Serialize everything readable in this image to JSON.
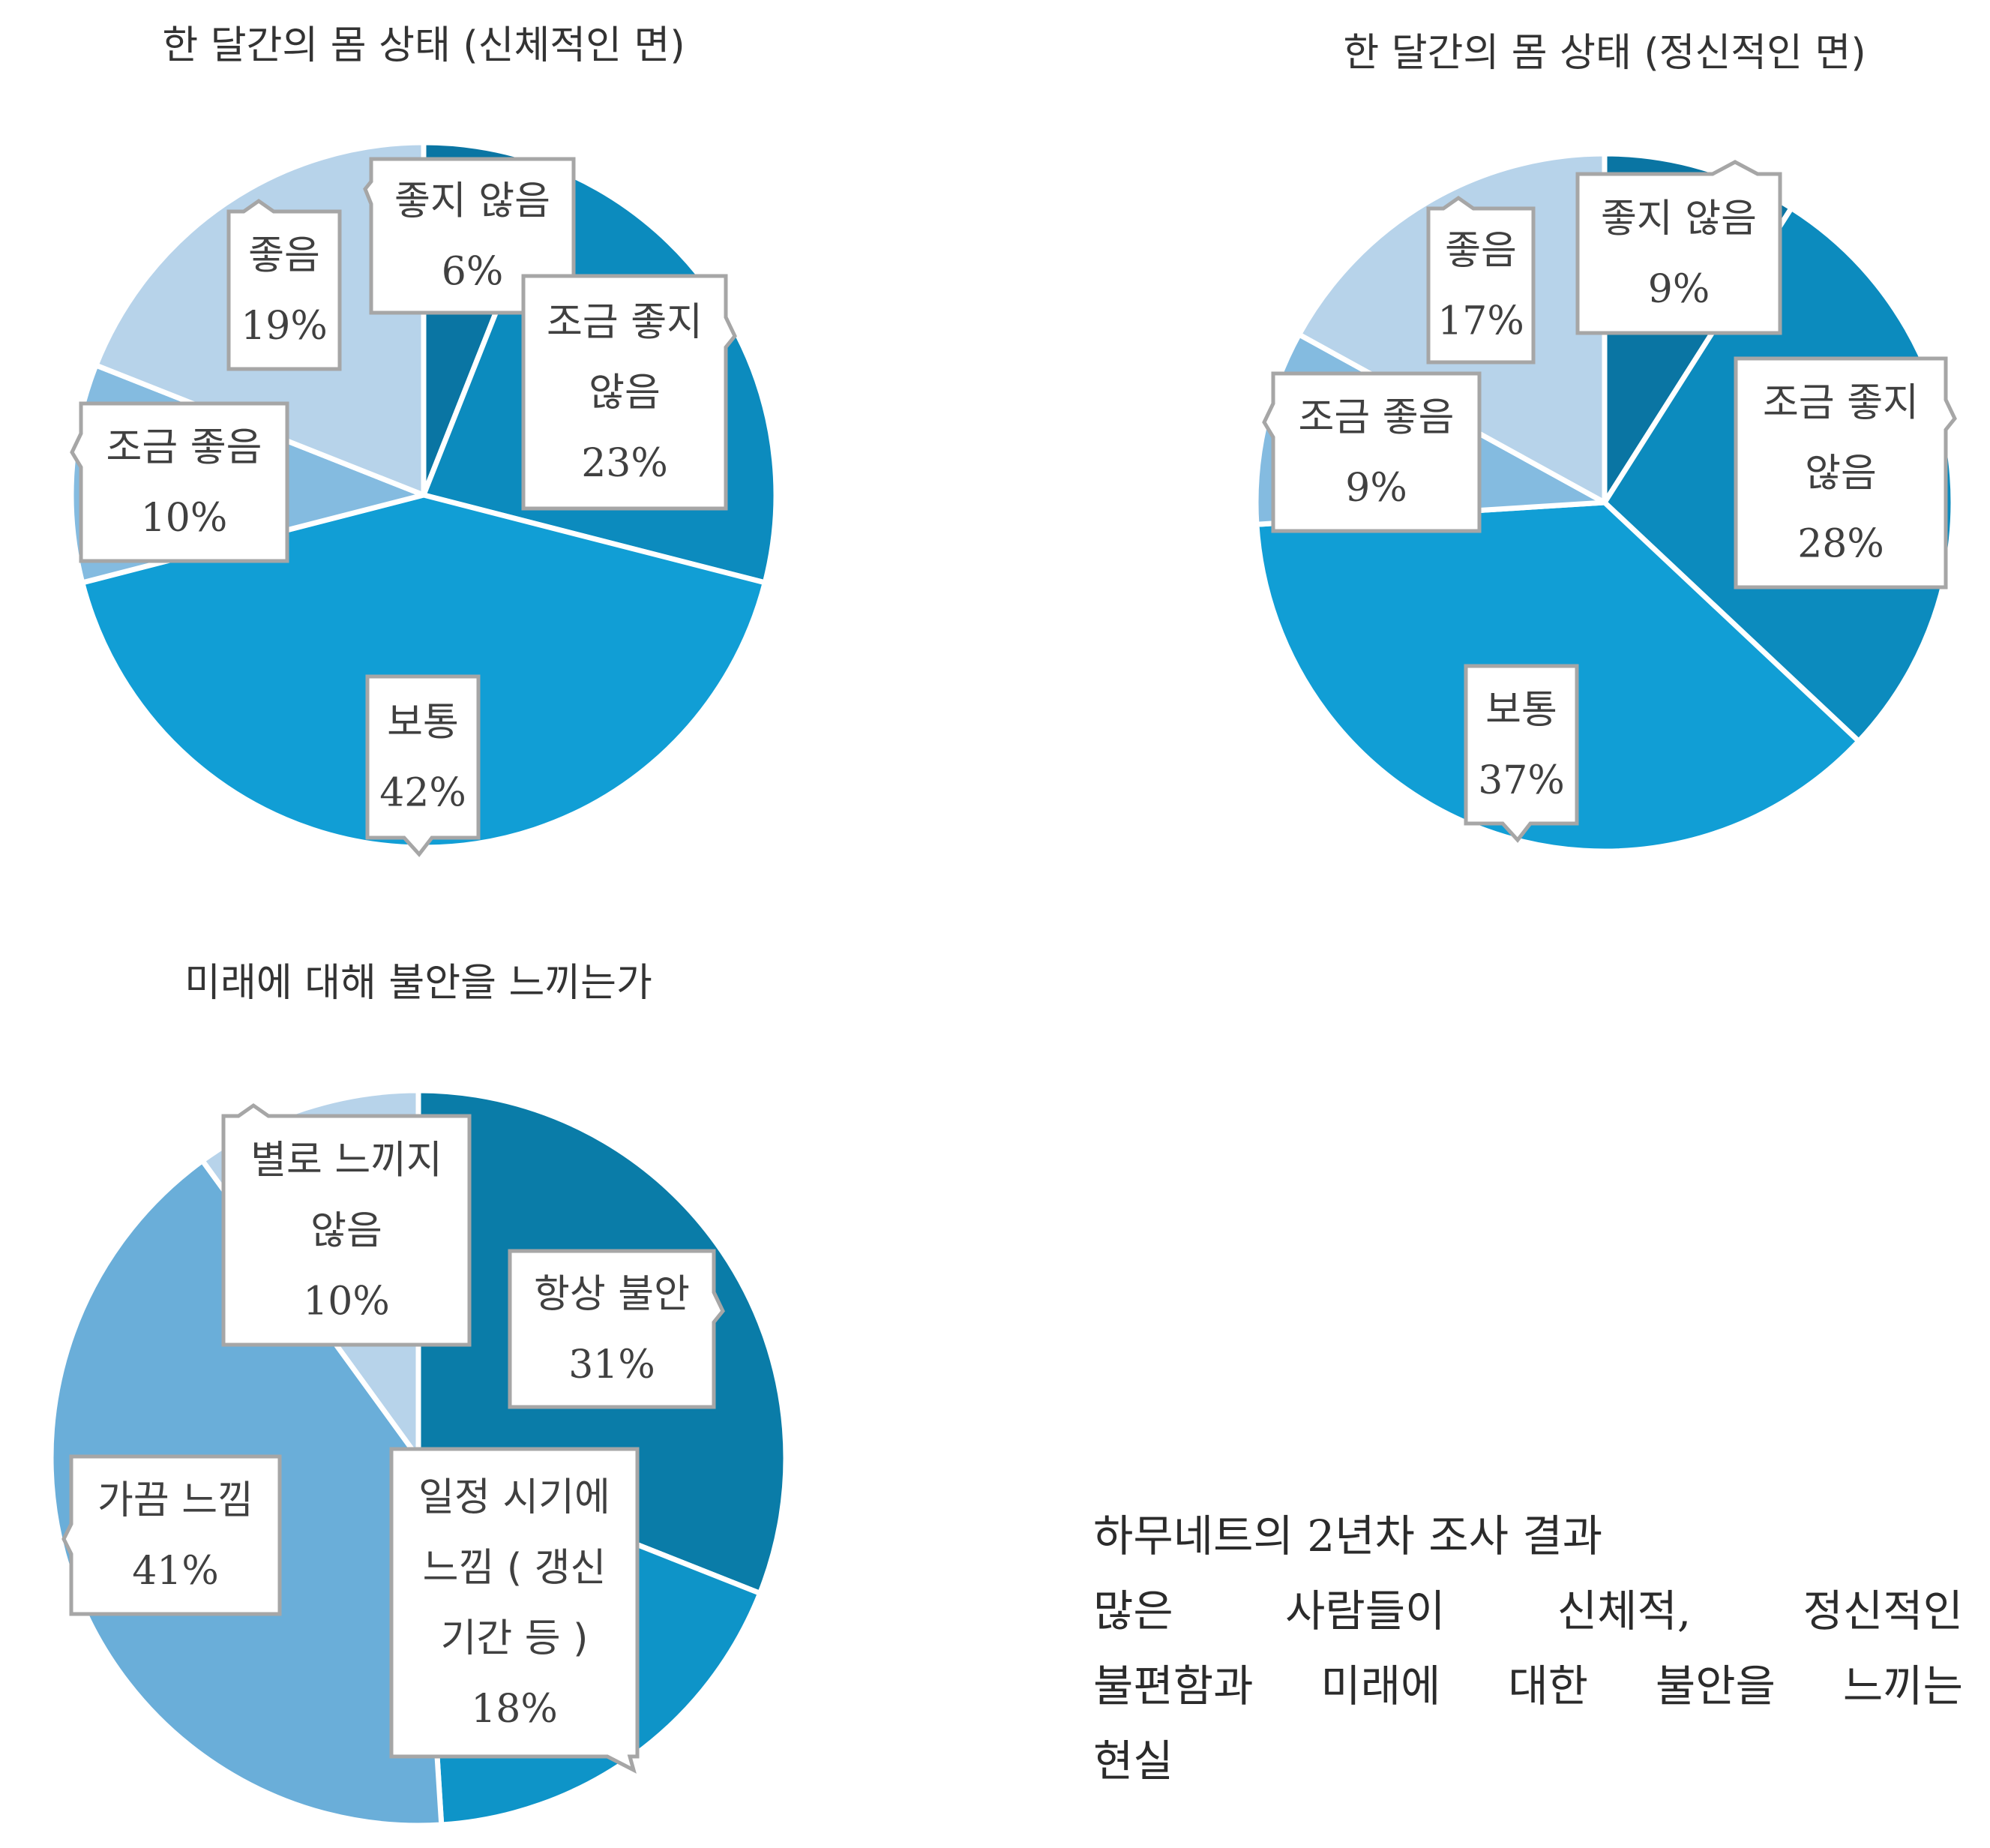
{
  "chart_data": [
    {
      "type": "pie",
      "title": "한 달간의 몸 상태 (신체적인 면)",
      "slices": [
        {
          "label": "좋지 않음",
          "value": 6,
          "pct_label": "6%",
          "color": "#0A75A3"
        },
        {
          "label": "조금 좋지 않음",
          "value": 23,
          "pct_label": "23%",
          "color": "#0C8BBE"
        },
        {
          "label": "보통",
          "value": 42,
          "pct_label": "42%",
          "color": "#119ED5"
        },
        {
          "label": "조금 좋음",
          "value": 10,
          "pct_label": "10%",
          "color": "#84BBE0"
        },
        {
          "label": "좋음",
          "value": 19,
          "pct_label": "19%",
          "color": "#B7D3EA"
        }
      ]
    },
    {
      "type": "pie",
      "title": "한 달간의 몸 상태 (정신적인 면)",
      "slices": [
        {
          "label": "좋지 않음",
          "value": 9,
          "pct_label": "9%",
          "color": "#0A75A3"
        },
        {
          "label": "조금 좋지 않음",
          "value": 28,
          "pct_label": "28%",
          "color": "#0C8BBE"
        },
        {
          "label": "보통",
          "value": 37,
          "pct_label": "37%",
          "color": "#119ED5"
        },
        {
          "label": "조금 좋음",
          "value": 9,
          "pct_label": "9%",
          "color": "#84BBE0"
        },
        {
          "label": "좋음",
          "value": 17,
          "pct_label": "17%",
          "color": "#B7D3EA"
        }
      ]
    },
    {
      "type": "pie",
      "title": "미래에 대해 불안을 느끼는가",
      "slices": [
        {
          "label": "항상 불안",
          "value": 31,
          "pct_label": "31%",
          "color": "#0A7CA8"
        },
        {
          "label": "일정 시기에 느낌 ( 갱신 기간 등 )",
          "value": 18,
          "pct_label": "18%",
          "color": "#0E94C8"
        },
        {
          "label": "가끔 느낌",
          "value": 41,
          "pct_label": "41%",
          "color": "#6AAED9"
        },
        {
          "label": "별로 느끼지 않음",
          "value": 10,
          "pct_label": "10%",
          "color": "#B7D3EA"
        }
      ]
    }
  ],
  "summary": {
    "lines": [
      "하무네트의 2년차 조사 결과",
      "많은 사람들이 신체적, 정신적인",
      "불편함과 미래에 대한 불안을 느끼는",
      "현실"
    ]
  }
}
